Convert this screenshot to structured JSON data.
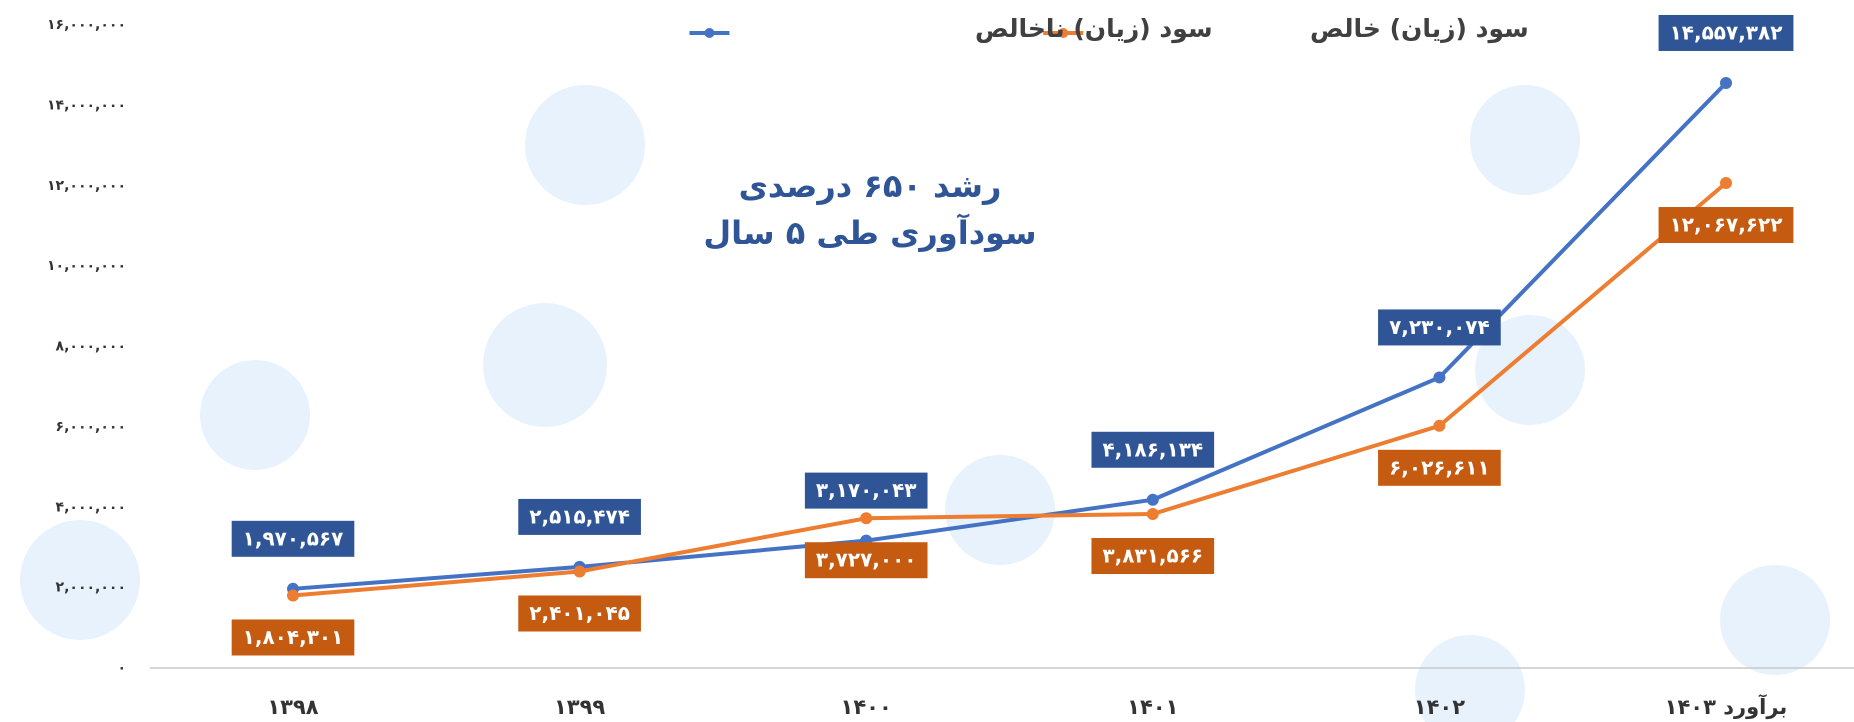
{
  "chart_data": {
    "type": "line",
    "annotation": [
      "رشد  ۶۵۰ درصدی",
      "سودآوری طی ۵ سال"
    ],
    "categories": [
      "۱۳۹۸",
      "۱۳۹۹",
      "۱۴۰۰",
      "۱۴۰۱",
      "۱۴۰۲",
      "برآورد ۱۴۰۳"
    ],
    "series": [
      {
        "name": "سود (زیان) ناخالص",
        "color": "#4472c4",
        "values": [
          1970567,
          2515474,
          3170043,
          4186134,
          7230074,
          14557382
        ],
        "value_labels": [
          "۱,۹۷۰,۵۶۷",
          "۲,۵۱۵,۴۷۴",
          "۳,۱۷۰,۰۴۳",
          "۴,۱۸۶,۱۳۴",
          "۷,۲۳۰,۰۷۴",
          "۱۴,۵۵۷,۳۸۲"
        ]
      },
      {
        "name": "سود (زیان) خالص",
        "color": "#ed7d31",
        "values": [
          1804301,
          2401045,
          3727000,
          3831566,
          6026611,
          12067622
        ],
        "value_labels": [
          "۱,۸۰۴,۳۰۱",
          "۲,۴۰۱,۰۴۵",
          "۳,۷۲۷,۰۰۰",
          "۳,۸۳۱,۵۶۶",
          "۶,۰۲۶,۶۱۱",
          "۱۲,۰۶۷,۶۲۲"
        ]
      }
    ],
    "ylim": [
      0,
      16000000
    ],
    "yticks": [
      {
        "value": 0,
        "label": "۰"
      },
      {
        "value": 2000000,
        "label": "۲,۰۰۰,۰۰۰"
      },
      {
        "value": 4000000,
        "label": "۴,۰۰۰,۰۰۰"
      },
      {
        "value": 6000000,
        "label": "۶,۰۰۰,۰۰۰"
      },
      {
        "value": 8000000,
        "label": "۸,۰۰۰,۰۰۰"
      },
      {
        "value": 10000000,
        "label": "۱۰,۰۰۰,۰۰۰"
      },
      {
        "value": 12000000,
        "label": "۱۲,۰۰۰,۰۰۰"
      },
      {
        "value": 14000000,
        "label": "۱۴,۰۰۰,۰۰۰"
      },
      {
        "value": 16000000,
        "label": "۱۶,۰۰۰,۰۰۰"
      }
    ],
    "grid": false,
    "legend": "top"
  }
}
